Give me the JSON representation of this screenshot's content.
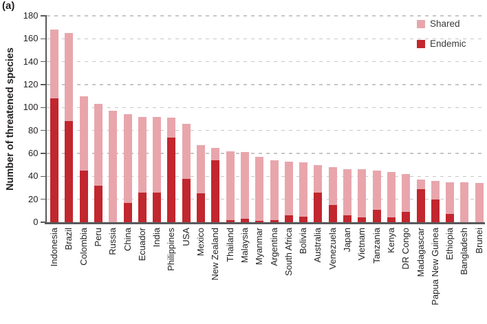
{
  "panel_label": "(a)",
  "colors": {
    "shared": "#E8A6AC",
    "endemic": "#C2262E",
    "axis": "#58595B",
    "grid": "#C6C6C6",
    "text": "#231F20"
  },
  "chart_data": {
    "type": "bar",
    "stacked": true,
    "title": "",
    "xlabel": "",
    "ylabel": "Number of threatened species",
    "ylim": [
      0,
      180
    ],
    "yticks": [
      0,
      20,
      40,
      60,
      80,
      100,
      120,
      140,
      160,
      180
    ],
    "grid": "horizontal dashed lines at every 20",
    "legend_position": "top-right",
    "legend_order": [
      "Shared",
      "Endemic"
    ],
    "stack_bottom_to_top": [
      "Endemic",
      "Shared"
    ],
    "categories": [
      "Indonesia",
      "Brazil",
      "Colombia",
      "Peru",
      "Russia",
      "China",
      "Ecuador",
      "India",
      "Philippines",
      "USA",
      "Mexico",
      "New Zealand",
      "Thailand",
      "Malaysia",
      "Myanmar",
      "Argentina",
      "South Africa",
      "Bolivia",
      "Australia",
      "Venezuela",
      "Japan",
      "Vietnam",
      "Tanzania",
      "Kenya",
      "DR Congo",
      "Madagascar",
      "Papua New Guinea",
      "Ethiopia",
      "Bangladesh",
      "Brunei"
    ],
    "series": [
      {
        "name": "Shared",
        "color": "#E8A6AC",
        "values": [
          60,
          77,
          65,
          71,
          97,
          77,
          66,
          66,
          17,
          48,
          42,
          11,
          60,
          58,
          56,
          52,
          47,
          47,
          24,
          33,
          40,
          42,
          34,
          40,
          33,
          8,
          16,
          28,
          35,
          34
        ]
      },
      {
        "name": "Endemic",
        "color": "#C2262E",
        "values": [
          108,
          88,
          45,
          32,
          0,
          17,
          26,
          26,
          74,
          38,
          25,
          54,
          2,
          3,
          1,
          2,
          6,
          5,
          26,
          15,
          6,
          4,
          11,
          4,
          9,
          29,
          20,
          7,
          0,
          0
        ]
      }
    ],
    "totals": [
      168,
      165,
      110,
      103,
      97,
      94,
      92,
      92,
      91,
      86,
      67,
      65,
      62,
      61,
      57,
      54,
      53,
      52,
      50,
      48,
      46,
      46,
      45,
      44,
      42,
      37,
      36,
      35,
      35,
      34
    ]
  }
}
